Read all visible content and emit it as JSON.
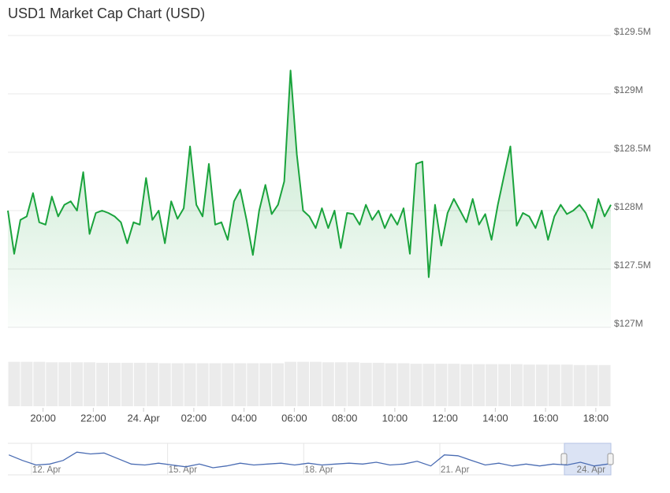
{
  "chart_data": {
    "type": "area",
    "title": "USD1 Market Cap Chart (USD)",
    "color": "#1aa33c",
    "grid": true,
    "xlim": [
      -5.4,
      18.6
    ],
    "xticks": [
      {
        "value": -4,
        "label": "20:00"
      },
      {
        "value": -2,
        "label": "22:00"
      },
      {
        "value": 0,
        "label": "24. Apr"
      },
      {
        "value": 2,
        "label": "02:00"
      },
      {
        "value": 4,
        "label": "04:00"
      },
      {
        "value": 6,
        "label": "06:00"
      },
      {
        "value": 8,
        "label": "08:00"
      },
      {
        "value": 10,
        "label": "10:00"
      },
      {
        "value": 12,
        "label": "12:00"
      },
      {
        "value": 14,
        "label": "14:00"
      },
      {
        "value": 16,
        "label": "16:00"
      },
      {
        "value": 18,
        "label": "18:00"
      }
    ],
    "ylim": [
      127,
      129.5
    ],
    "yticks": [
      {
        "value": 127,
        "label": "$127M"
      },
      {
        "value": 127.5,
        "label": "$127.5M"
      },
      {
        "value": 128,
        "label": "$128M"
      },
      {
        "value": 128.5,
        "label": "$128.5M"
      },
      {
        "value": 129,
        "label": "$129M"
      },
      {
        "value": 129.5,
        "label": "$129.5M"
      }
    ],
    "x": [
      -5.4,
      -5.15,
      -4.9,
      -4.65,
      -4.4,
      -4.15,
      -3.9,
      -3.65,
      -3.4,
      -3.15,
      -2.9,
      -2.65,
      -2.4,
      -2.15,
      -1.9,
      -1.65,
      -1.4,
      -1.15,
      -0.9,
      -0.65,
      -0.4,
      -0.15,
      0.1,
      0.35,
      0.6,
      0.85,
      1.1,
      1.35,
      1.6,
      1.85,
      2.1,
      2.35,
      2.6,
      2.85,
      3.1,
      3.35,
      3.6,
      3.85,
      4.1,
      4.35,
      4.6,
      4.85,
      5.1,
      5.35,
      5.6,
      5.85,
      6.1,
      6.35,
      6.6,
      6.85,
      7.1,
      7.35,
      7.6,
      7.85,
      8.1,
      8.35,
      8.6,
      8.85,
      9.1,
      9.35,
      9.6,
      9.85,
      10.1,
      10.35,
      10.6,
      10.85,
      11.1,
      11.35,
      11.6,
      11.85,
      12.1,
      12.35,
      12.6,
      12.85,
      13.1,
      13.35,
      13.6,
      13.85,
      14.1,
      14.35,
      14.6,
      14.85,
      15.1,
      15.35,
      15.6,
      15.85,
      16.1,
      16.35,
      16.6,
      16.85,
      17.1,
      17.35,
      17.6,
      17.85,
      18.1,
      18.35,
      18.6
    ],
    "values": [
      128.0,
      127.63,
      127.92,
      127.95,
      128.15,
      127.9,
      127.88,
      128.12,
      127.95,
      128.05,
      128.08,
      128.0,
      128.33,
      127.8,
      127.98,
      128.0,
      127.98,
      127.95,
      127.9,
      127.72,
      127.9,
      127.88,
      128.28,
      127.92,
      128.0,
      127.72,
      128.08,
      127.93,
      128.02,
      128.55,
      128.05,
      127.95,
      128.4,
      127.88,
      127.9,
      127.75,
      128.08,
      128.18,
      127.92,
      127.62,
      128.0,
      128.22,
      127.97,
      128.05,
      128.25,
      129.2,
      128.48,
      128.0,
      127.95,
      127.85,
      128.02,
      127.85,
      128.0,
      127.68,
      127.98,
      127.97,
      127.88,
      128.05,
      127.92,
      128.0,
      127.85,
      127.97,
      127.88,
      128.02,
      127.63,
      128.4,
      128.42,
      127.43,
      128.05,
      127.7,
      127.98,
      128.1,
      128.0,
      127.9,
      128.1,
      127.88,
      127.97,
      127.75,
      128.05,
      128.3,
      128.55,
      127.87,
      127.98,
      127.95,
      127.85,
      128.0,
      127.75,
      127.95,
      128.05,
      127.97,
      128.0,
      128.05,
      127.98,
      127.85,
      128.1,
      127.95,
      128.05
    ],
    "volume": {
      "ylim": [
        0,
        100
      ],
      "values": [
        97,
        97,
        97,
        96,
        96,
        96,
        96,
        95,
        95,
        95,
        95,
        95,
        94,
        94,
        94,
        94,
        94,
        94,
        94,
        94,
        94,
        94,
        97,
        97,
        97,
        96,
        96,
        96,
        95,
        95,
        94,
        94,
        93,
        93,
        93,
        93,
        92,
        92,
        92,
        92,
        92,
        91,
        91,
        91,
        91,
        90,
        90,
        90
      ]
    },
    "navigator": {
      "xlim": [
        11.48,
        24.77
      ],
      "ylim": [
        127.5,
        129
      ],
      "xticks": [
        {
          "value": 12,
          "label": "12. Apr"
        },
        {
          "value": 15,
          "label": "15. Apr"
        },
        {
          "value": 18,
          "label": "18. Apr"
        },
        {
          "value": 21,
          "label": "21. Apr"
        },
        {
          "value": 24,
          "label": "24. Apr"
        }
      ],
      "color": "#4a6cb3",
      "x": [
        11.5,
        11.8,
        12.1,
        12.4,
        12.7,
        13.0,
        13.3,
        13.6,
        13.9,
        14.2,
        14.5,
        14.8,
        15.1,
        15.4,
        15.7,
        16.0,
        16.3,
        16.6,
        16.9,
        17.2,
        17.5,
        17.8,
        18.1,
        18.4,
        18.7,
        19.0,
        19.3,
        19.6,
        19.9,
        20.2,
        20.5,
        20.8,
        21.1,
        21.4,
        21.7,
        22.0,
        22.3,
        22.6,
        22.9,
        23.2,
        23.5,
        23.8,
        24.1,
        24.4,
        24.7
      ],
      "values": [
        128.5,
        128.2,
        127.95,
        128.0,
        128.2,
        128.65,
        128.55,
        128.6,
        128.3,
        128.0,
        127.95,
        128.05,
        127.95,
        127.85,
        128.0,
        127.8,
        127.9,
        128.05,
        127.95,
        128.0,
        128.05,
        127.95,
        128.05,
        127.95,
        128.0,
        128.05,
        128.0,
        128.1,
        127.95,
        128.0,
        128.15,
        127.9,
        128.5,
        128.45,
        128.2,
        127.95,
        128.05,
        127.9,
        128.0,
        127.9,
        128.0,
        127.95,
        128.1,
        127.9,
        128.0
      ]
    }
  }
}
